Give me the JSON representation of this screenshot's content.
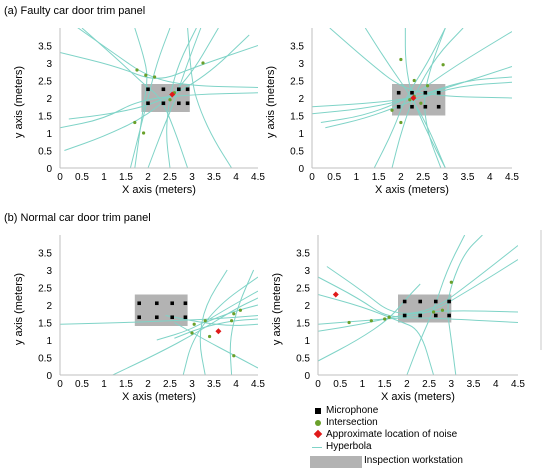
{
  "sections": {
    "faulty": {
      "title": "(a) Faulty car door trim panel"
    },
    "normal": {
      "title": "(b) Normal car door trim panel"
    }
  },
  "axis_labels": {
    "x": "X axis (meters)",
    "y": "y axis (meters)"
  },
  "legend": {
    "microphone": "Microphone",
    "intersection": "Intersection",
    "noise": "Approximate location of noise",
    "hyperbola": "Hyperbola",
    "workstation": "Inspection workstation"
  },
  "colors": {
    "hyperbola": "#7fd3c7",
    "intersection": "#6aa02a",
    "noise": "#e01a1a",
    "microphone": "#000000",
    "workstation": "#b3b3b3"
  },
  "chart_data": [
    {
      "type": "scatter",
      "panel": "a-left",
      "xlim": [
        0,
        4.5
      ],
      "ylim": [
        0,
        4
      ],
      "xticks": [
        "0",
        "0.5",
        "1",
        "1.5",
        "2",
        "2.5",
        "3",
        "3.5",
        "4",
        "4.5"
      ],
      "yticks": [
        "0",
        "0.5",
        "1",
        "1.5",
        "2",
        "2.5",
        "3",
        "3.5"
      ],
      "workstation": {
        "x": [
          1.85,
          2.95
        ],
        "y": [
          1.6,
          2.4
        ]
      },
      "microphones": [
        [
          2.0,
          2.25
        ],
        [
          2.35,
          2.25
        ],
        [
          2.7,
          2.25
        ],
        [
          2.9,
          2.25
        ],
        [
          2.0,
          1.85
        ],
        [
          2.35,
          1.85
        ],
        [
          2.7,
          1.85
        ],
        [
          2.9,
          1.85
        ]
      ],
      "intersections": [
        [
          1.75,
          2.8
        ],
        [
          1.95,
          2.65
        ],
        [
          2.15,
          2.6
        ],
        [
          3.25,
          3.0
        ],
        [
          2.5,
          1.95
        ],
        [
          2.6,
          2.15
        ],
        [
          1.7,
          1.3
        ],
        [
          1.9,
          1.0
        ]
      ],
      "noise": [
        [
          2.55,
          2.1
        ]
      ],
      "hyperbolas": [
        [
          [
            0.3,
            4.1
          ],
          [
            1.2,
            3.3
          ],
          [
            2.0,
            2.6
          ],
          [
            2.9,
            2.35
          ],
          [
            4.5,
            2.3
          ]
        ],
        [
          [
            0.0,
            3.3
          ],
          [
            1.3,
            2.9
          ],
          [
            2.2,
            2.45
          ],
          [
            3.1,
            2.9
          ],
          [
            4.5,
            3.5
          ]
        ],
        [
          [
            0.2,
            1.4
          ],
          [
            1.2,
            1.55
          ],
          [
            2.2,
            1.85
          ],
          [
            3.3,
            2.6
          ],
          [
            4.3,
            3.8
          ]
        ],
        [
          [
            0.1,
            0.5
          ],
          [
            1.0,
            0.9
          ],
          [
            2.0,
            1.5
          ],
          [
            2.9,
            2.5
          ],
          [
            3.6,
            4.0
          ]
        ],
        [
          [
            0.0,
            1.15
          ],
          [
            1.0,
            1.4
          ],
          [
            1.8,
            1.95
          ],
          [
            3.0,
            2.1
          ],
          [
            4.5,
            2.15
          ]
        ],
        [
          [
            1.6,
            0.0
          ],
          [
            1.8,
            1.0
          ],
          [
            2.0,
            2.0
          ],
          [
            2.2,
            3.0
          ],
          [
            2.5,
            4.0
          ]
        ],
        [
          [
            2.5,
            0.0
          ],
          [
            2.4,
            1.0
          ],
          [
            2.5,
            2.1
          ],
          [
            2.7,
            3.0
          ],
          [
            3.1,
            4.0
          ]
        ],
        [
          [
            2.0,
            0.0
          ],
          [
            2.3,
            1.0
          ],
          [
            2.6,
            1.9
          ],
          [
            2.9,
            3.0
          ],
          [
            3.2,
            4.0
          ]
        ],
        [
          [
            3.9,
            0.0
          ],
          [
            3.5,
            0.8
          ],
          [
            3.2,
            1.6
          ],
          [
            3.0,
            2.4
          ],
          [
            2.9,
            4.0
          ]
        ],
        [
          [
            0.5,
            4.0
          ],
          [
            1.4,
            3.0
          ],
          [
            1.9,
            2.4
          ],
          [
            2.3,
            2.0
          ],
          [
            2.6,
            1.1
          ],
          [
            2.9,
            0.0
          ]
        ],
        [
          [
            1.7,
            4.0
          ],
          [
            1.9,
            3.2
          ],
          [
            2.0,
            2.6
          ],
          [
            1.9,
            1.8
          ],
          [
            1.7,
            0.0
          ]
        ]
      ]
    },
    {
      "type": "scatter",
      "panel": "a-right",
      "xlim": [
        0,
        4.5
      ],
      "ylim": [
        0,
        4
      ],
      "xticks": [
        "0",
        "0.5",
        "1",
        "1.5",
        "2",
        "2.5",
        "3",
        "3.5",
        "4",
        "4.5"
      ],
      "yticks": [
        "0",
        "0.5",
        "1",
        "1.5",
        "2",
        "2.5",
        "3",
        "3.5"
      ],
      "workstation": {
        "x": [
          1.8,
          3.0
        ],
        "y": [
          1.5,
          2.4
        ]
      },
      "microphones": [
        [
          1.95,
          2.15
        ],
        [
          2.25,
          2.15
        ],
        [
          2.55,
          2.15
        ],
        [
          2.85,
          2.15
        ],
        [
          1.95,
          1.75
        ],
        [
          2.25,
          1.75
        ],
        [
          2.55,
          1.75
        ],
        [
          2.85,
          1.75
        ]
      ],
      "intersections": [
        [
          2.0,
          3.1
        ],
        [
          2.3,
          2.5
        ],
        [
          2.6,
          2.35
        ],
        [
          2.95,
          2.95
        ],
        [
          2.2,
          1.95
        ],
        [
          2.3,
          2.05
        ],
        [
          2.45,
          1.85
        ],
        [
          1.8,
          1.65
        ],
        [
          2.0,
          1.3
        ]
      ],
      "noise": [
        [
          2.28,
          2.0
        ]
      ],
      "hyperbolas": [
        [
          [
            0.2,
            1.3
          ],
          [
            1.2,
            1.5
          ],
          [
            2.2,
            2.0
          ],
          [
            3.2,
            2.9
          ],
          [
            4.5,
            3.9
          ]
        ],
        [
          [
            0.0,
            1.55
          ],
          [
            1.2,
            1.7
          ],
          [
            2.3,
            2.0
          ],
          [
            3.4,
            2.5
          ],
          [
            4.5,
            2.6
          ]
        ],
        [
          [
            0.3,
            1.15
          ],
          [
            1.3,
            1.45
          ],
          [
            2.3,
            1.95
          ],
          [
            3.3,
            2.35
          ],
          [
            4.5,
            2.45
          ]
        ],
        [
          [
            0.0,
            1.75
          ],
          [
            1.3,
            1.85
          ],
          [
            2.3,
            2.0
          ],
          [
            3.3,
            2.4
          ],
          [
            4.5,
            2.9
          ]
        ],
        [
          [
            0.4,
            4.0
          ],
          [
            1.3,
            3.0
          ],
          [
            2.0,
            2.3
          ],
          [
            2.8,
            2.05
          ],
          [
            4.5,
            2.0
          ]
        ],
        [
          [
            1.2,
            4.0
          ],
          [
            1.7,
            3.0
          ],
          [
            2.2,
            2.1
          ],
          [
            2.6,
            1.2
          ],
          [
            3.0,
            0.0
          ]
        ],
        [
          [
            1.4,
            0.0
          ],
          [
            1.8,
            1.0
          ],
          [
            2.1,
            2.0
          ],
          [
            2.6,
            3.0
          ],
          [
            3.0,
            4.0
          ]
        ],
        [
          [
            2.1,
            4.0
          ],
          [
            2.1,
            3.0
          ],
          [
            2.25,
            2.0
          ],
          [
            2.6,
            1.0
          ],
          [
            3.0,
            0.0
          ]
        ],
        [
          [
            3.0,
            4.0
          ],
          [
            2.7,
            3.0
          ],
          [
            2.5,
            2.0
          ],
          [
            2.6,
            1.0
          ],
          [
            2.9,
            0.0
          ]
        ],
        [
          [
            1.8,
            0.0
          ],
          [
            2.0,
            1.0
          ],
          [
            2.3,
            2.1
          ],
          [
            2.8,
            3.2
          ],
          [
            3.4,
            4.0
          ]
        ]
      ]
    },
    {
      "type": "scatter",
      "panel": "b-left",
      "xlim": [
        0,
        4.5
      ],
      "ylim": [
        0,
        4
      ],
      "xticks": [
        "0",
        "0.5",
        "1",
        "1.5",
        "2",
        "2.5",
        "3",
        "3.5",
        "4",
        "4.5"
      ],
      "yticks": [
        "0",
        "0.5",
        "1",
        "1.5",
        "2",
        "2.5",
        "3",
        "3.5"
      ],
      "workstation": {
        "x": [
          1.7,
          2.9
        ],
        "y": [
          1.4,
          2.3
        ]
      },
      "microphones": [
        [
          1.8,
          2.05
        ],
        [
          2.2,
          2.05
        ],
        [
          2.55,
          2.05
        ],
        [
          2.85,
          2.05
        ],
        [
          1.8,
          1.65
        ],
        [
          2.2,
          1.65
        ],
        [
          2.55,
          1.65
        ],
        [
          2.85,
          1.65
        ]
      ],
      "intersections": [
        [
          3.05,
          1.45
        ],
        [
          3.3,
          1.55
        ],
        [
          3.9,
          1.55
        ],
        [
          3.95,
          1.75
        ],
        [
          4.1,
          1.85
        ],
        [
          3.4,
          1.1
        ],
        [
          3.0,
          1.2
        ],
        [
          3.95,
          0.55
        ]
      ],
      "noise": [
        [
          3.6,
          1.25
        ]
      ],
      "hyperbolas": [
        [
          [
            0.0,
            1.45
          ],
          [
            1.5,
            1.5
          ],
          [
            2.5,
            1.55
          ],
          [
            3.5,
            1.6
          ],
          [
            4.5,
            1.7
          ]
        ],
        [
          [
            2.2,
            1.0
          ],
          [
            3.0,
            1.3
          ],
          [
            3.8,
            1.9
          ],
          [
            4.5,
            2.4
          ]
        ],
        [
          [
            2.6,
            1.05
          ],
          [
            3.2,
            1.35
          ],
          [
            3.9,
            1.55
          ],
          [
            4.5,
            1.6
          ]
        ],
        [
          [
            2.4,
            1.7
          ],
          [
            3.2,
            1.5
          ],
          [
            3.9,
            1.4
          ],
          [
            4.5,
            1.45
          ]
        ],
        [
          [
            3.3,
            0.0
          ],
          [
            3.15,
            1.0
          ],
          [
            3.3,
            2.0
          ],
          [
            3.8,
            3.0
          ]
        ],
        [
          [
            2.8,
            0.0
          ],
          [
            3.0,
            1.0
          ],
          [
            3.6,
            2.0
          ],
          [
            4.5,
            2.8
          ]
        ],
        [
          [
            3.9,
            0.0
          ],
          [
            3.85,
            1.0
          ],
          [
            4.05,
            2.0
          ],
          [
            4.4,
            3.0
          ]
        ],
        [
          [
            1.2,
            0.0
          ],
          [
            2.2,
            0.6
          ],
          [
            3.1,
            1.2
          ],
          [
            4.0,
            1.9
          ],
          [
            4.5,
            2.2
          ]
        ],
        [
          [
            2.6,
            1.5
          ],
          [
            3.3,
            1.0
          ],
          [
            3.9,
            0.6
          ],
          [
            4.5,
            0.2
          ]
        ],
        [
          [
            3.3,
            1.5
          ],
          [
            3.9,
            1.8
          ],
          [
            4.5,
            2.0
          ]
        ]
      ]
    },
    {
      "type": "scatter",
      "panel": "b-right",
      "xlim": [
        0,
        4.5
      ],
      "ylim": [
        0,
        4
      ],
      "xticks": [
        "0",
        "0.5",
        "1",
        "1.5",
        "2",
        "2.5",
        "3",
        "3.5",
        "4",
        "4.5"
      ],
      "yticks": [
        "0",
        "0.5",
        "1",
        "1.5",
        "2",
        "2.5",
        "3",
        "3.5"
      ],
      "workstation": {
        "x": [
          1.8,
          3.0
        ],
        "y": [
          1.5,
          2.3
        ]
      },
      "microphones": [
        [
          1.95,
          2.1
        ],
        [
          2.3,
          2.1
        ],
        [
          2.65,
          2.1
        ],
        [
          2.95,
          2.1
        ],
        [
          1.95,
          1.7
        ],
        [
          2.3,
          1.7
        ],
        [
          2.65,
          1.7
        ],
        [
          2.95,
          1.7
        ]
      ],
      "intersections": [
        [
          0.7,
          1.5
        ],
        [
          1.2,
          1.55
        ],
        [
          1.5,
          1.6
        ],
        [
          1.6,
          1.65
        ],
        [
          3.0,
          2.65
        ],
        [
          2.6,
          1.8
        ],
        [
          2.8,
          1.85
        ]
      ],
      "noise": [
        [
          0.4,
          2.3
        ]
      ],
      "hyperbolas": [
        [
          [
            0.0,
            1.25
          ],
          [
            1.0,
            1.45
          ],
          [
            2.0,
            1.75
          ],
          [
            3.0,
            1.85
          ],
          [
            4.5,
            1.8
          ]
        ],
        [
          [
            0.0,
            1.45
          ],
          [
            1.0,
            1.55
          ],
          [
            2.0,
            1.65
          ],
          [
            3.0,
            1.6
          ],
          [
            4.5,
            1.5
          ]
        ],
        [
          [
            0.0,
            2.8
          ],
          [
            0.9,
            2.2
          ],
          [
            1.6,
            1.6
          ],
          [
            2.5,
            1.75
          ],
          [
            3.5,
            2.5
          ],
          [
            4.5,
            3.3
          ]
        ],
        [
          [
            0.2,
            3.1
          ],
          [
            1.0,
            2.4
          ],
          [
            1.7,
            1.7
          ],
          [
            2.6,
            1.85
          ],
          [
            3.5,
            2.7
          ],
          [
            4.5,
            3.7
          ]
        ],
        [
          [
            0.0,
            2.3
          ],
          [
            1.0,
            1.95
          ],
          [
            1.8,
            1.55
          ],
          [
            2.3,
            1.3
          ],
          [
            2.6,
            0.0
          ]
        ],
        [
          [
            0.0,
            0.4
          ],
          [
            0.9,
            1.0
          ],
          [
            1.6,
            1.6
          ],
          [
            2.0,
            2.2
          ],
          [
            2.3,
            2.6
          ]
        ],
        [
          [
            3.1,
            0.0
          ],
          [
            3.0,
            1.0
          ],
          [
            2.9,
            1.9
          ],
          [
            3.0,
            2.6
          ],
          [
            3.3,
            3.5
          ],
          [
            3.7,
            4.0
          ]
        ],
        [
          [
            2.0,
            0.0
          ],
          [
            2.3,
            1.0
          ],
          [
            2.6,
            1.85
          ],
          [
            2.9,
            3.0
          ],
          [
            3.3,
            4.0
          ]
        ]
      ]
    }
  ]
}
